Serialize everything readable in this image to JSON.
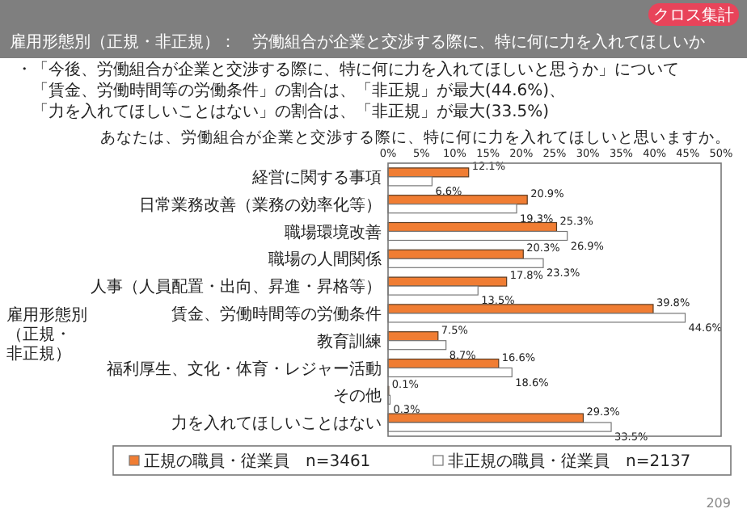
{
  "chart_data": {
    "type": "bar",
    "orientation": "horizontal",
    "title": "雇用形態別（正規・非正規）：　労働組合が企業と交渉する際に、特に何に力を入れてほしいか",
    "subtitle": "あなたは、労働組合が企業と交渉する際に、特に何に力を入れてほしいと思いますか。",
    "ylabel": "雇用形態別（正規・非正規）",
    "annotations": [
      "クロス集計",
      "・「今後、労働組合が企業と交渉する際に、特に何に力を入れてほしいと思うか」について",
      "「賃金、労働時間等の労働条件」の割合は、「非正規」が最大(44.6%)、",
      "「力を入れてほしいことはない」の割合は、「非正規」が最大(33.5%)",
      "209"
    ],
    "categories": [
      "経営に関する事項",
      "日常業務改善（業務の効率化等）",
      "職場環境改善",
      "職場の人間関係",
      "人事（人員配置・出向、昇進・昇格等）",
      "賃金、労働時間等の労働条件",
      "教育訓練",
      "福利厚生、文化・体育・レジャー活動",
      "その他",
      "力を入れてほしいことはない"
    ],
    "series": [
      {
        "name": "正規の職員・従業員　n=3461",
        "color": "#f07d33",
        "values": [
          12.1,
          20.9,
          25.3,
          20.3,
          17.8,
          39.8,
          7.5,
          16.6,
          0.1,
          29.3
        ],
        "value_labels": [
          "12.1%",
          "20.9%",
          "25.3%",
          "20.3%",
          "17.8%",
          "39.8%",
          "7.5%",
          "16.6%",
          "0.1%",
          "29.3%"
        ]
      },
      {
        "name": "非正規の職員・従業員　n=2137",
        "color": "#ffffff",
        "values": [
          6.6,
          19.3,
          26.9,
          23.3,
          13.5,
          44.6,
          8.7,
          18.6,
          0.3,
          33.5
        ],
        "value_labels": [
          "6.6%",
          "19.3%",
          "26.9%",
          "23.3%",
          "13.5%",
          "44.6%",
          "8.7%",
          "18.6%",
          "0.3%",
          "33.5%"
        ]
      }
    ],
    "xlim": [
      0,
      50
    ],
    "xticks": [
      {
        "value": 0,
        "label": "0%"
      },
      {
        "value": 5,
        "label": "5%"
      },
      {
        "value": 10,
        "label": "10%"
      },
      {
        "value": 15,
        "label": "15%"
      },
      {
        "value": 20,
        "label": "20%"
      },
      {
        "value": 25,
        "label": "25%"
      },
      {
        "value": 30,
        "label": "30%"
      },
      {
        "value": 35,
        "label": "35%"
      },
      {
        "value": 40,
        "label": "40%"
      },
      {
        "value": 45,
        "label": "45%"
      },
      {
        "value": 50,
        "label": "50%"
      }
    ],
    "legend": "bottom"
  }
}
